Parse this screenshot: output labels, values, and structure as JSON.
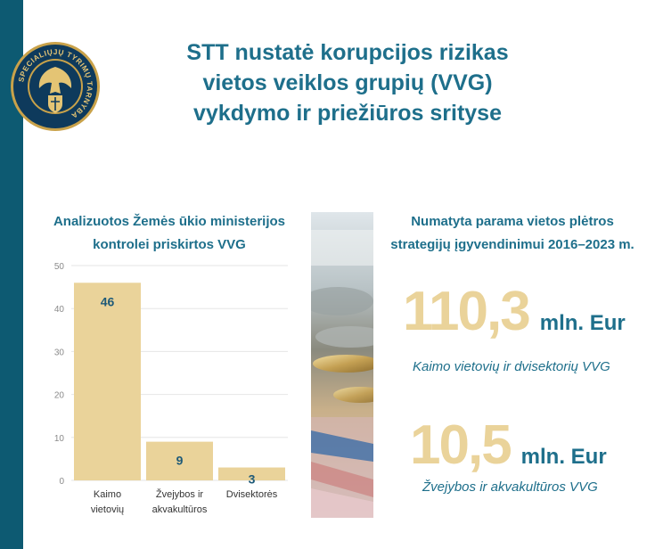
{
  "header": {
    "title_lines": [
      "STT nustatė korupcijos rizikas",
      "vietos veiklos grupių (VVG)",
      "vykdymo ir priežiūros srityse"
    ]
  },
  "logo": {
    "ring_text": "SPECIALIŲJŲ TYRIMŲ TARNYBA"
  },
  "left_panel": {
    "title_lines": [
      "Analizuotos Žemės ūkio ministerijos",
      "kontrolei priskirtos VVG"
    ]
  },
  "chart_data": {
    "type": "bar",
    "title": "Analizuotos Žemės ūkio ministerijos kontrolei priskirtos VVG",
    "categories": [
      [
        "Kaimo",
        "vietovių"
      ],
      [
        "Žvejybos ir",
        "akvakultūros"
      ],
      [
        "Dvisektorės"
      ]
    ],
    "values": [
      46,
      9,
      3
    ],
    "ylim": [
      0,
      50
    ],
    "yticks": [
      0,
      10,
      20,
      30,
      40,
      50
    ],
    "grid": true,
    "bar_color": "#ead39a",
    "label_color": "#1e5a78"
  },
  "right_panel": {
    "title_lines": [
      "Numatyta parama vietos plėtros",
      "strategijų įgyvendinimui 2016–2023 m."
    ],
    "stats": [
      {
        "value": "110,3",
        "unit": "mln. Eur",
        "caption": "Kaimo vietovių ir dvisektorių VVG"
      },
      {
        "value": "10,5",
        "unit": "mln. Eur",
        "caption": "Žvejybos ir akvakultūros VVG"
      }
    ]
  },
  "colors": {
    "accent": "#1e6f8b",
    "sidebar": "#0d5a72",
    "gold": "#ead39a"
  }
}
